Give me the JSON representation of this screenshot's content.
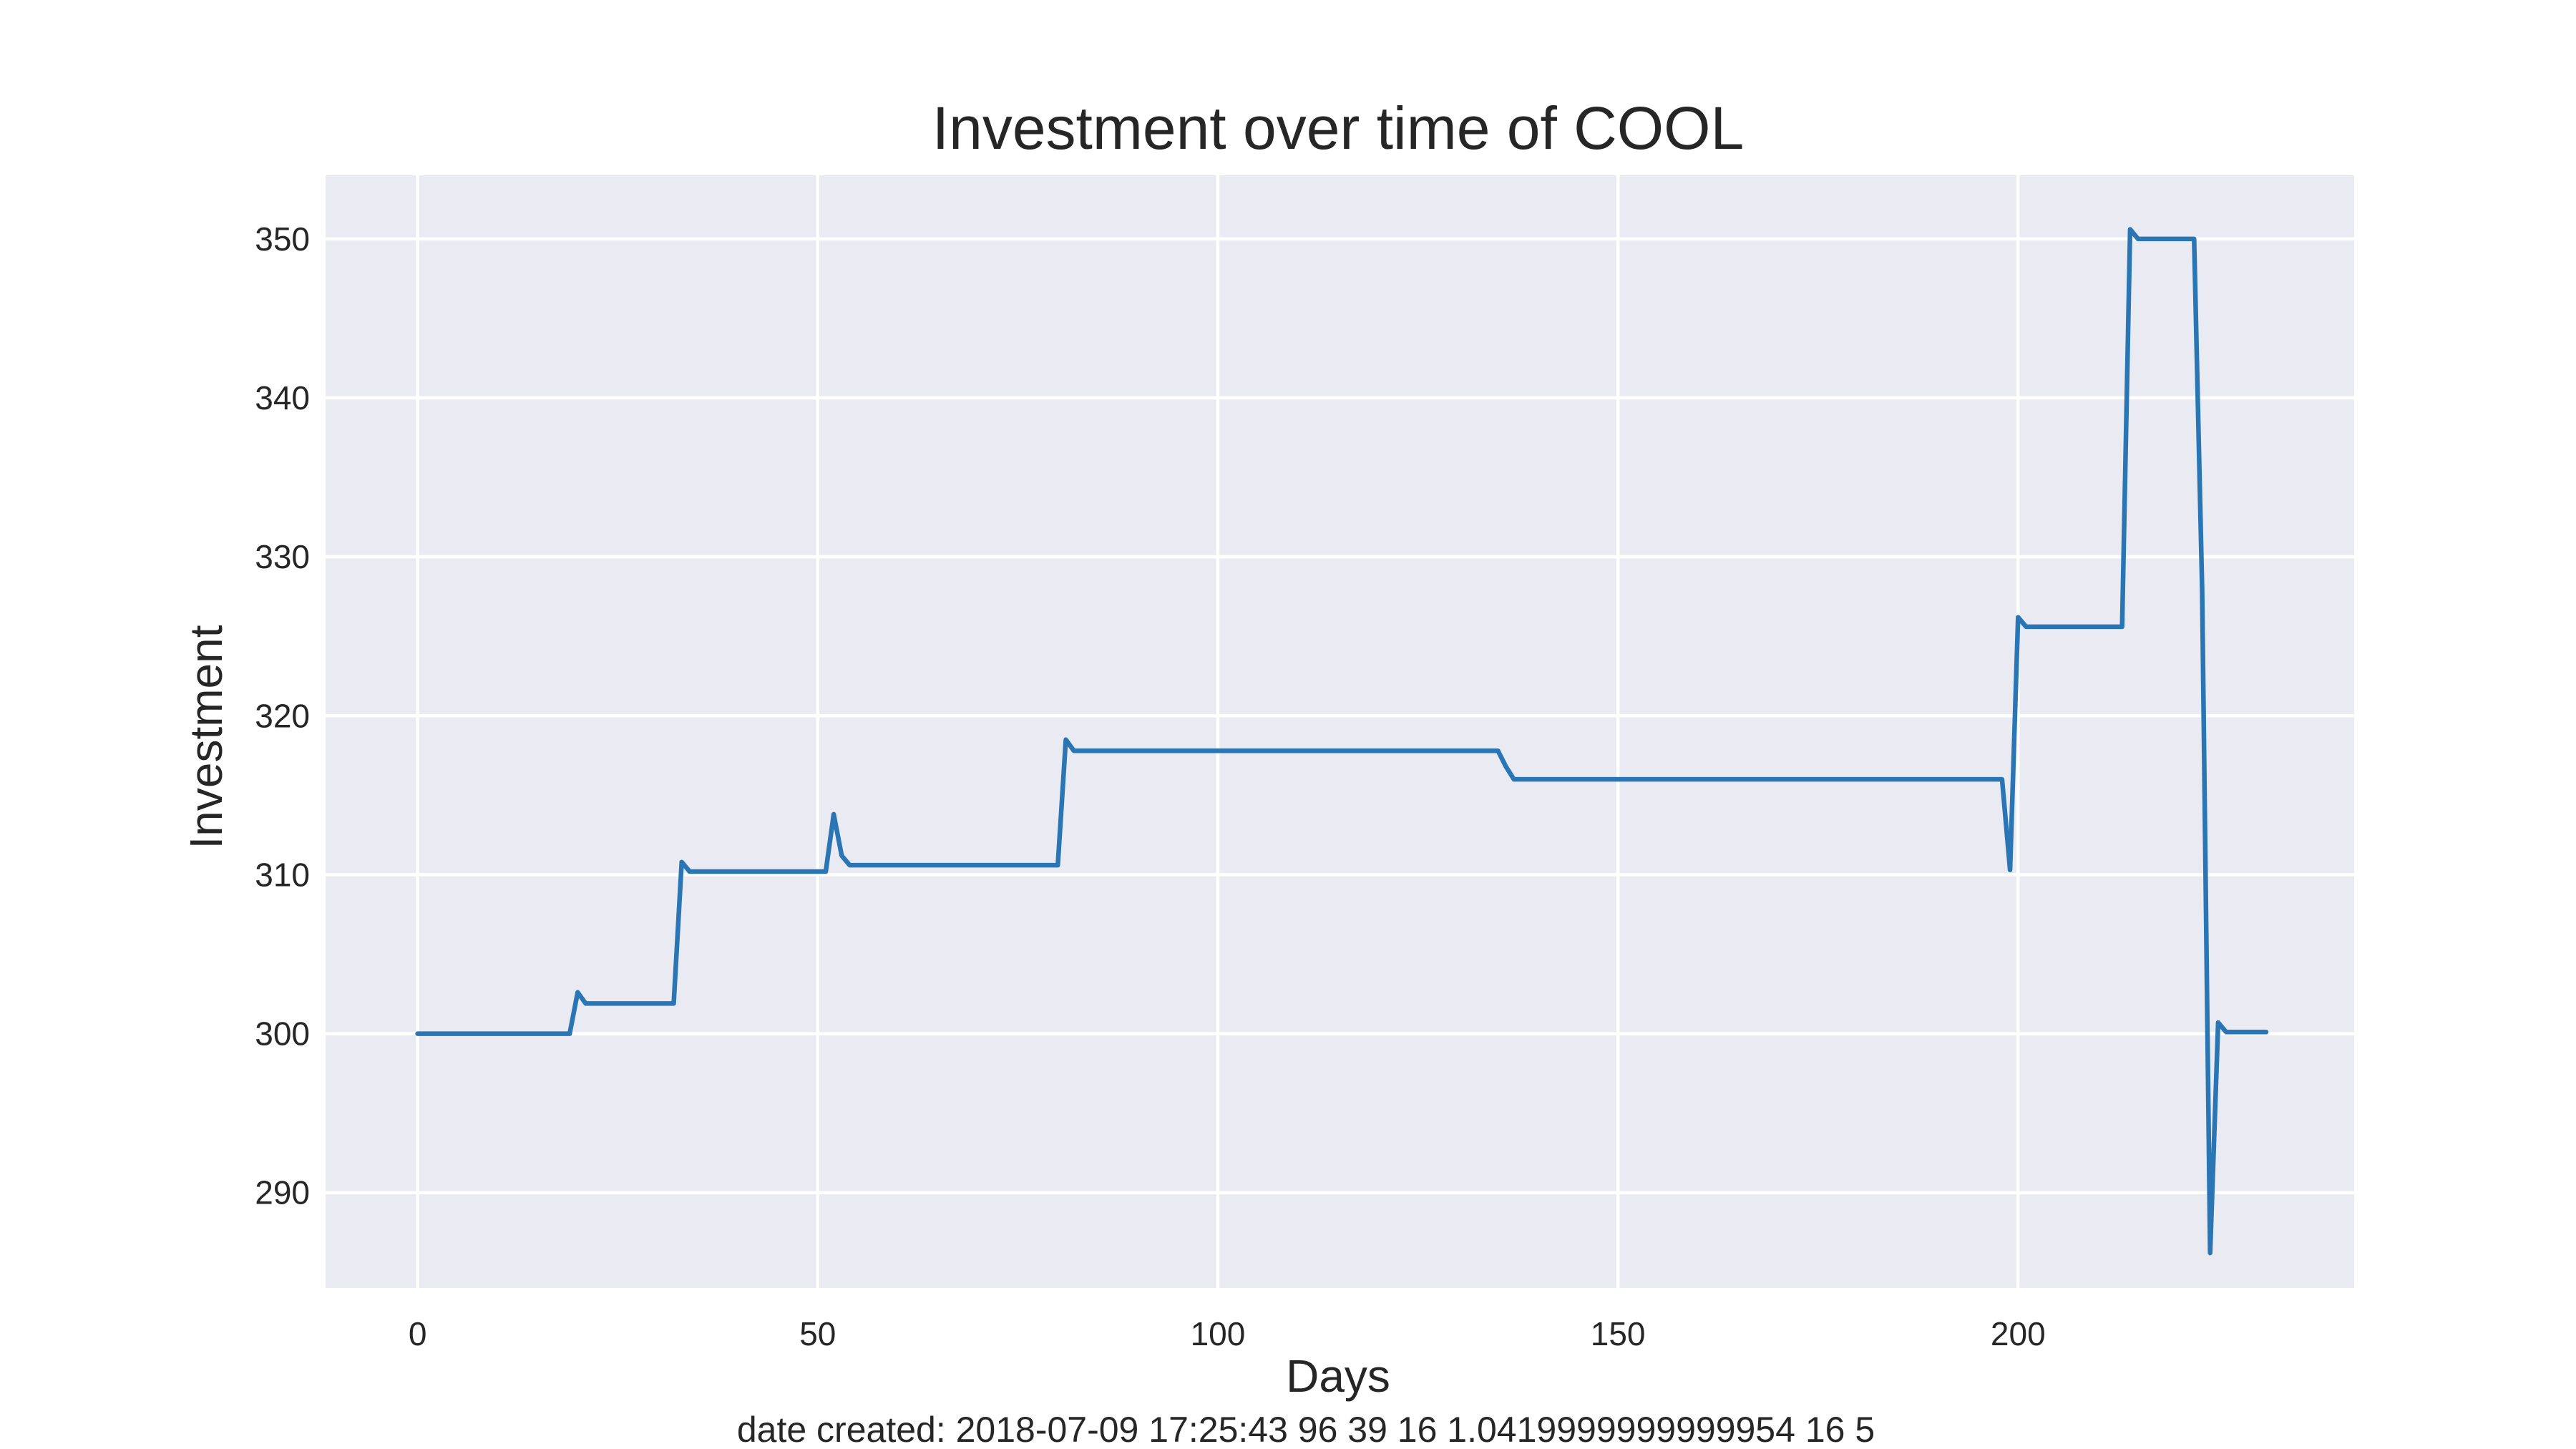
{
  "chart_data": {
    "type": "line",
    "title": "Investment over time of COOL",
    "xlabel": "Days",
    "ylabel": "Investment",
    "xlim": [
      -11.5,
      242
    ],
    "ylim": [
      284,
      354
    ],
    "xticks": [
      0,
      50,
      100,
      150,
      200
    ],
    "yticks": [
      290,
      300,
      310,
      320,
      330,
      340,
      350
    ],
    "grid": true,
    "legend": "none",
    "colors": {
      "line": "#2a76b4",
      "plot_background": "#eaeaf2",
      "grid": "#ffffff"
    },
    "series": [
      {
        "x": [
          0,
          19,
          20,
          21,
          32,
          33,
          34,
          51,
          52,
          53,
          54,
          80,
          81,
          82,
          135,
          136,
          137,
          198,
          199,
          200,
          201,
          213,
          214,
          215,
          222,
          223,
          224,
          225,
          226,
          231
        ],
        "y": [
          300.0,
          300.0,
          302.6,
          301.9,
          301.9,
          310.8,
          310.2,
          310.2,
          313.8,
          311.2,
          310.6,
          310.6,
          318.5,
          317.8,
          317.8,
          316.8,
          316.0,
          316.0,
          310.3,
          326.2,
          325.6,
          325.6,
          350.6,
          350.0,
          350.0,
          328.0,
          286.2,
          300.7,
          300.1,
          300.1
        ]
      }
    ],
    "footer": "date created: 2018-07-09 17:25:43 96 39 16 1.0419999999999954 16 5"
  }
}
